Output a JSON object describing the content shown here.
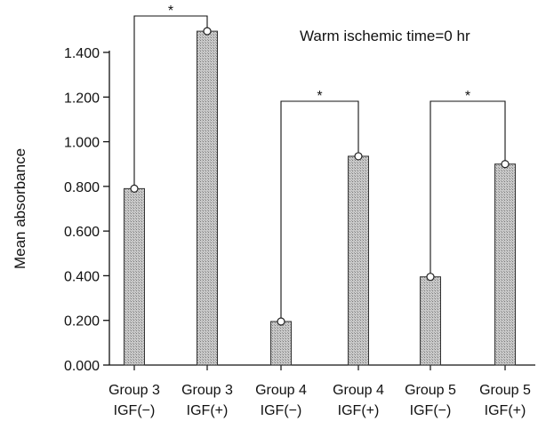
{
  "chart_data": {
    "type": "bar",
    "categories": [
      [
        "Group 3",
        "IGF(−)"
      ],
      [
        "Group 3",
        "IGF(+)"
      ],
      [
        "Group 4",
        "IGF(−)"
      ],
      [
        "Group 4",
        "IGF(+)"
      ],
      [
        "Group 5",
        "IGF(−)"
      ],
      [
        "Group 5",
        "IGF(+)"
      ]
    ],
    "values": [
      0.79,
      1.495,
      0.195,
      0.935,
      0.395,
      0.9
    ],
    "ylabel": "Mean absorbance",
    "xlabel": "",
    "ylim": [
      0,
      1.4
    ],
    "yticks": [
      "0.000",
      "0.200",
      "0.400",
      "0.600",
      "0.800",
      "1.000",
      "1.200",
      "1.400"
    ],
    "annotation": "Warm ischemic time=0 hr",
    "significance": [
      {
        "pair": [
          0,
          1
        ],
        "label": "*"
      },
      {
        "pair": [
          2,
          3
        ],
        "label": "*"
      },
      {
        "pair": [
          4,
          5
        ],
        "label": "*"
      }
    ],
    "bar_color": "#b9b9b9",
    "grid": false
  }
}
